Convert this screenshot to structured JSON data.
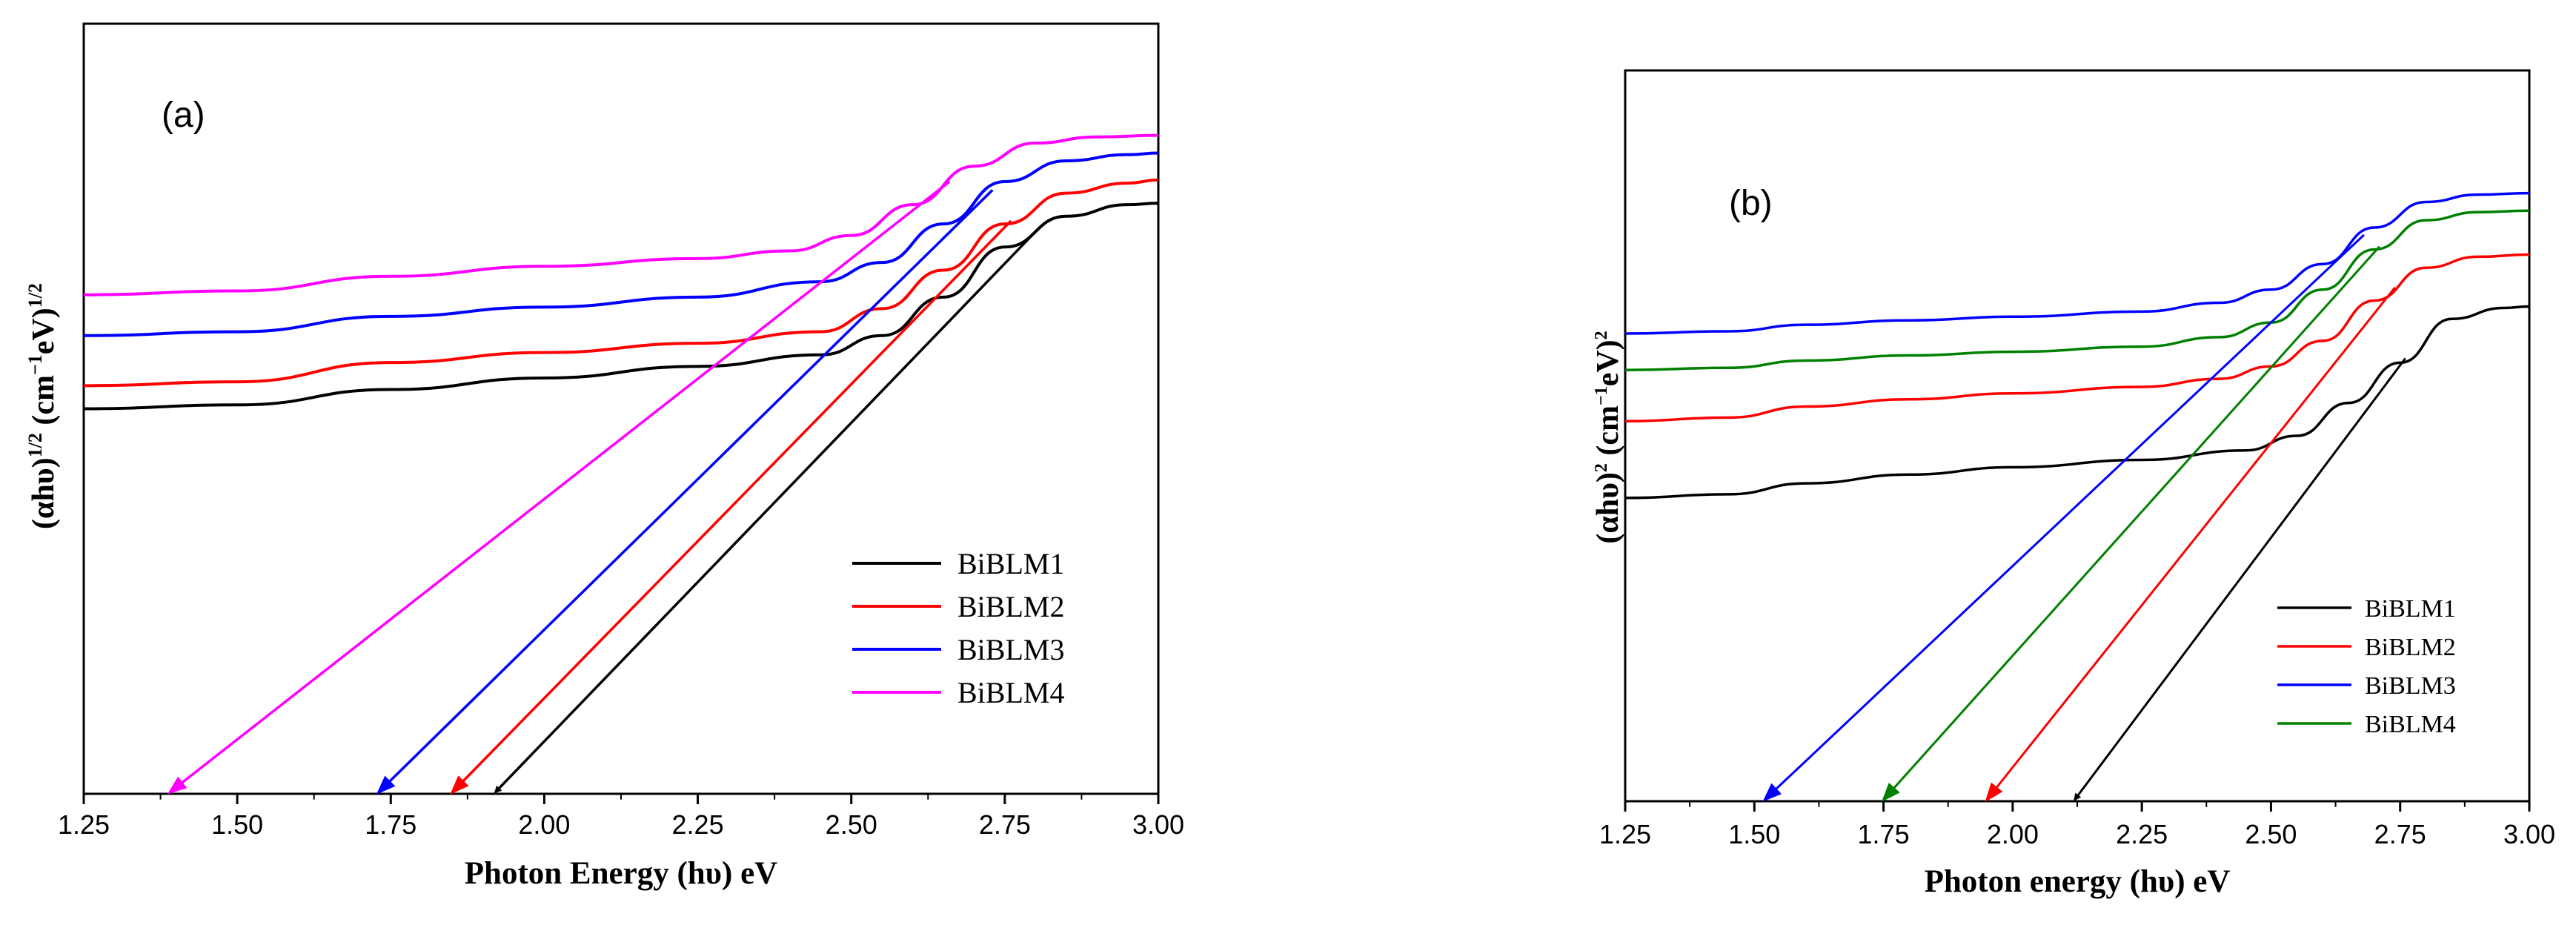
{
  "chart_data": [
    {
      "type": "line",
      "panel_label": "(a)",
      "xlabel": "Photon Energy (hυ) eV",
      "ylabel": "(αhυ)^1/2 (cm^-1 eV)^1/2",
      "ylabel_parts": {
        "base": "(αhυ)",
        "exp1": "1/2",
        "unit": " (cm",
        "exp2": "−1",
        "unit2": "eV)",
        "exp3": "1/2"
      },
      "xlim": [
        1.25,
        3.0
      ],
      "ylim": [
        0,
        1
      ],
      "xticks": [
        "1.25",
        "1.50",
        "1.75",
        "2.00",
        "2.25",
        "2.50",
        "2.75",
        "3.00"
      ],
      "xtick_values": [
        1.25,
        1.5,
        1.75,
        2.0,
        2.25,
        2.5,
        2.75,
        3.0
      ],
      "legend_position": "lower-right",
      "series": [
        {
          "name": "BiBLM1",
          "color": "#000000",
          "x": [
            1.25,
            1.5,
            1.75,
            2.0,
            2.25,
            2.45,
            2.55,
            2.65,
            2.75,
            2.85,
            2.95,
            3.0
          ],
          "y": [
            0.5,
            0.505,
            0.525,
            0.54,
            0.555,
            0.57,
            0.595,
            0.645,
            0.71,
            0.75,
            0.765,
            0.767
          ],
          "tangent": {
            "x0": 1.92,
            "x1": 2.8
          }
        },
        {
          "name": "BiBLM2",
          "color": "#ff0000",
          "x": [
            1.25,
            1.5,
            1.75,
            2.0,
            2.25,
            2.45,
            2.55,
            2.65,
            2.75,
            2.85,
            2.95,
            3.0
          ],
          "y": [
            0.53,
            0.535,
            0.56,
            0.573,
            0.585,
            0.6,
            0.63,
            0.68,
            0.74,
            0.78,
            0.793,
            0.797
          ],
          "tangent": {
            "x0": 1.85,
            "x1": 2.76
          }
        },
        {
          "name": "BiBLM3",
          "color": "#0000ff",
          "x": [
            1.25,
            1.5,
            1.75,
            2.0,
            2.25,
            2.45,
            2.55,
            2.65,
            2.75,
            2.85,
            2.95,
            3.0
          ],
          "y": [
            0.595,
            0.6,
            0.62,
            0.632,
            0.645,
            0.665,
            0.69,
            0.74,
            0.795,
            0.822,
            0.83,
            0.832
          ],
          "tangent": {
            "x0": 1.73,
            "x1": 2.73
          }
        },
        {
          "name": "BiBLM4",
          "color": "#ff00ff",
          "x": [
            1.25,
            1.5,
            1.75,
            2.0,
            2.25,
            2.4,
            2.5,
            2.6,
            2.7,
            2.8,
            2.9,
            3.0
          ],
          "y": [
            0.648,
            0.653,
            0.672,
            0.685,
            0.695,
            0.705,
            0.725,
            0.765,
            0.815,
            0.845,
            0.853,
            0.855
          ],
          "tangent": {
            "x0": 1.39,
            "x1": 2.66
          }
        }
      ]
    },
    {
      "type": "line",
      "panel_label": "(b)",
      "xlabel": "Photon energy (hυ) eV",
      "ylabel": "(αhυ)^2 (cm^-1 eV)^2",
      "ylabel_parts": {
        "base": "(αhυ)",
        "exp1": "2",
        "unit": " (cm",
        "exp2": "−1",
        "unit2": "eV)",
        "exp3": "2"
      },
      "xlim": [
        1.25,
        3.0
      ],
      "ylim": [
        0,
        1
      ],
      "xticks": [
        "1.25",
        "1.50",
        "1.75",
        "2.00",
        "2.25",
        "2.50",
        "2.75",
        "3.00"
      ],
      "xtick_values": [
        1.25,
        1.5,
        1.75,
        2.0,
        2.25,
        2.5,
        2.75,
        3.0
      ],
      "legend_position": "lower-right",
      "series": [
        {
          "name": "BiBLM1",
          "color": "#000000",
          "x": [
            1.25,
            1.45,
            1.6,
            1.8,
            2.0,
            2.25,
            2.45,
            2.55,
            2.65,
            2.75,
            2.85,
            2.95,
            3.0
          ],
          "y": [
            0.415,
            0.42,
            0.435,
            0.447,
            0.457,
            0.467,
            0.48,
            0.5,
            0.545,
            0.6,
            0.66,
            0.675,
            0.677
          ],
          "tangent": {
            "x0": 2.12,
            "x1": 2.76
          }
        },
        {
          "name": "BiBLM2",
          "color": "#ff0000",
          "x": [
            1.25,
            1.45,
            1.6,
            1.8,
            2.0,
            2.25,
            2.4,
            2.5,
            2.6,
            2.7,
            2.8,
            2.9,
            3.0
          ],
          "y": [
            0.52,
            0.525,
            0.54,
            0.55,
            0.558,
            0.567,
            0.578,
            0.595,
            0.63,
            0.685,
            0.73,
            0.745,
            0.748
          ],
          "tangent": {
            "x0": 1.95,
            "x1": 2.74
          }
        },
        {
          "name": "BiBLM3",
          "color": "#0000ff",
          "x": [
            1.25,
            1.45,
            1.6,
            1.8,
            2.0,
            2.25,
            2.4,
            2.5,
            2.6,
            2.7,
            2.8,
            2.9,
            3.0
          ],
          "y": [
            0.64,
            0.643,
            0.652,
            0.658,
            0.663,
            0.67,
            0.682,
            0.7,
            0.735,
            0.785,
            0.82,
            0.83,
            0.832
          ],
          "tangent": {
            "x0": 1.52,
            "x1": 2.68
          }
        },
        {
          "name": "BiBLM4",
          "color": "#008000",
          "x": [
            1.25,
            1.45,
            1.6,
            1.8,
            2.0,
            2.25,
            2.4,
            2.5,
            2.6,
            2.7,
            2.8,
            2.9,
            3.0
          ],
          "y": [
            0.59,
            0.593,
            0.603,
            0.61,
            0.615,
            0.622,
            0.635,
            0.655,
            0.7,
            0.755,
            0.795,
            0.806,
            0.808
          ],
          "tangent": {
            "x0": 1.75,
            "x1": 2.71
          }
        }
      ]
    }
  ]
}
